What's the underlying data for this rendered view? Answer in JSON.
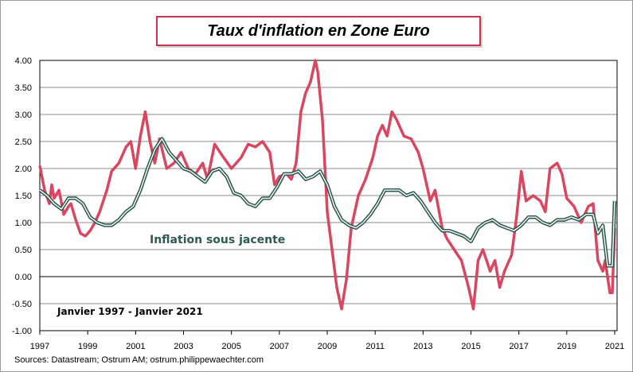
{
  "chart_data": {
    "type": "line",
    "title": "Taux d'inflation en Zone Euro",
    "xlabel": "",
    "ylabel": "",
    "xlim": [
      1997,
      2021.1
    ],
    "ylim": [
      -1.0,
      4.0
    ],
    "y_ticks": [
      "4.00",
      "3.50",
      "3.00",
      "2.50",
      "2.00",
      "1.50",
      "1.00",
      "0.50",
      "0.00",
      "-0.50",
      "-1.00"
    ],
    "x_ticks": [
      "1997",
      "1999",
      "2001",
      "2003",
      "2005",
      "2007",
      "2009",
      "2011",
      "2013",
      "2015",
      "2017",
      "2019",
      "2021"
    ],
    "grid": "horizontal",
    "annotations": {
      "core_label": "Inflation sous jacente",
      "period": "Janvier 1997 - Janvier 2021"
    },
    "colors": {
      "headline": "#d9465f",
      "core": "#2e5a52"
    },
    "series": [
      {
        "key": "headline",
        "x": [
          1997.0,
          1997.2,
          1997.4,
          1997.5,
          1997.6,
          1997.8,
          1998.0,
          1998.2,
          1998.3,
          1998.5,
          1998.7,
          1998.9,
          1999.1,
          1999.3,
          1999.5,
          1999.8,
          2000.0,
          2000.3,
          2000.6,
          2000.8,
          2001.0,
          2001.2,
          2001.4,
          2001.6,
          2001.8,
          2002.0,
          2002.3,
          2002.6,
          2002.9,
          2003.2,
          2003.5,
          2003.8,
          2004.0,
          2004.3,
          2004.6,
          2005.0,
          2005.4,
          2005.7,
          2006.0,
          2006.3,
          2006.6,
          2006.8,
          2007.0,
          2007.3,
          2007.5,
          2007.7,
          2007.9,
          2008.1,
          2008.3,
          2008.5,
          2008.6,
          2008.8,
          2009.0,
          2009.2,
          2009.4,
          2009.6,
          2009.8,
          2010.0,
          2010.3,
          2010.6,
          2010.9,
          2011.1,
          2011.3,
          2011.5,
          2011.7,
          2011.9,
          2012.2,
          2012.5,
          2012.8,
          2013.0,
          2013.3,
          2013.5,
          2013.8,
          2014.0,
          2014.3,
          2014.6,
          2014.9,
          2015.1,
          2015.3,
          2015.5,
          2015.8,
          2016.0,
          2016.2,
          2016.4,
          2016.7,
          2016.9,
          2017.1,
          2017.3,
          2017.6,
          2017.9,
          2018.1,
          2018.3,
          2018.6,
          2018.8,
          2019.0,
          2019.3,
          2019.6,
          2019.9,
          2020.1,
          2020.3,
          2020.5,
          2020.6,
          2020.8,
          2020.9,
          2021.0
        ],
        "values": [
          2.05,
          1.6,
          1.35,
          1.7,
          1.45,
          1.6,
          1.15,
          1.3,
          1.35,
          1.05,
          0.8,
          0.75,
          0.85,
          1.0,
          1.2,
          1.6,
          1.95,
          2.1,
          2.4,
          2.5,
          2.0,
          2.6,
          3.05,
          2.5,
          2.1,
          2.55,
          2.0,
          2.1,
          2.3,
          2.0,
          1.9,
          2.1,
          1.8,
          2.45,
          2.25,
          2.0,
          2.2,
          2.45,
          2.4,
          2.5,
          2.3,
          1.7,
          1.85,
          1.9,
          1.8,
          2.1,
          3.05,
          3.4,
          3.6,
          4.0,
          3.8,
          2.9,
          1.2,
          0.5,
          -0.2,
          -0.6,
          -0.05,
          0.9,
          1.5,
          1.8,
          2.2,
          2.6,
          2.8,
          2.6,
          3.05,
          2.9,
          2.6,
          2.55,
          2.3,
          2.0,
          1.4,
          1.6,
          0.9,
          0.7,
          0.5,
          0.3,
          -0.2,
          -0.6,
          0.3,
          0.5,
          0.1,
          0.3,
          -0.2,
          0.1,
          0.4,
          1.1,
          1.95,
          1.4,
          1.5,
          1.4,
          1.2,
          2.0,
          2.1,
          1.9,
          1.45,
          1.3,
          1.0,
          1.3,
          1.35,
          0.3,
          0.1,
          0.3,
          -0.3,
          -0.3,
          0.9
        ]
      },
      {
        "key": "core",
        "name": "Inflation sous jacente",
        "x": [
          1997.0,
          1997.3,
          1997.6,
          1997.9,
          1998.2,
          1998.5,
          1998.8,
          1999.1,
          1999.4,
          1999.7,
          2000.0,
          2000.3,
          2000.6,
          2000.9,
          2001.2,
          2001.5,
          2001.8,
          2002.1,
          2002.4,
          2002.7,
          2003.0,
          2003.3,
          2003.6,
          2003.9,
          2004.2,
          2004.5,
          2004.8,
          2005.1,
          2005.4,
          2005.7,
          2006.0,
          2006.3,
          2006.6,
          2006.9,
          2007.2,
          2007.5,
          2007.8,
          2008.1,
          2008.4,
          2008.7,
          2009.0,
          2009.3,
          2009.6,
          2009.9,
          2010.2,
          2010.5,
          2010.8,
          2011.1,
          2011.4,
          2011.7,
          2012.0,
          2012.3,
          2012.6,
          2012.9,
          2013.2,
          2013.5,
          2013.8,
          2014.1,
          2014.4,
          2014.7,
          2015.0,
          2015.3,
          2015.6,
          2015.9,
          2016.2,
          2016.5,
          2016.8,
          2017.1,
          2017.4,
          2017.7,
          2018.0,
          2018.3,
          2018.6,
          2018.9,
          2019.2,
          2019.5,
          2019.8,
          2020.1,
          2020.3,
          2020.5,
          2020.7,
          2020.9,
          2021.0
        ],
        "values": [
          1.6,
          1.5,
          1.35,
          1.25,
          1.45,
          1.45,
          1.35,
          1.1,
          1.0,
          0.95,
          0.95,
          1.05,
          1.2,
          1.3,
          1.6,
          2.0,
          2.35,
          2.55,
          2.3,
          2.15,
          2.0,
          1.95,
          1.85,
          1.75,
          1.95,
          2.0,
          1.85,
          1.55,
          1.5,
          1.35,
          1.3,
          1.45,
          1.45,
          1.65,
          1.9,
          1.9,
          1.95,
          1.8,
          1.85,
          1.95,
          1.7,
          1.3,
          1.05,
          0.95,
          0.9,
          1.0,
          1.15,
          1.35,
          1.6,
          1.6,
          1.6,
          1.5,
          1.55,
          1.4,
          1.2,
          1.0,
          0.85,
          0.85,
          0.8,
          0.75,
          0.65,
          0.9,
          1.0,
          1.05,
          0.95,
          0.9,
          0.85,
          0.95,
          1.1,
          1.1,
          1.0,
          0.95,
          1.05,
          1.05,
          1.1,
          1.05,
          1.15,
          1.15,
          0.8,
          0.95,
          0.2,
          0.2,
          1.4
        ]
      }
    ]
  },
  "footer": {
    "sources": "Sources: Datastream; Ostrum AM; ostrum.philippewaechter.com"
  }
}
